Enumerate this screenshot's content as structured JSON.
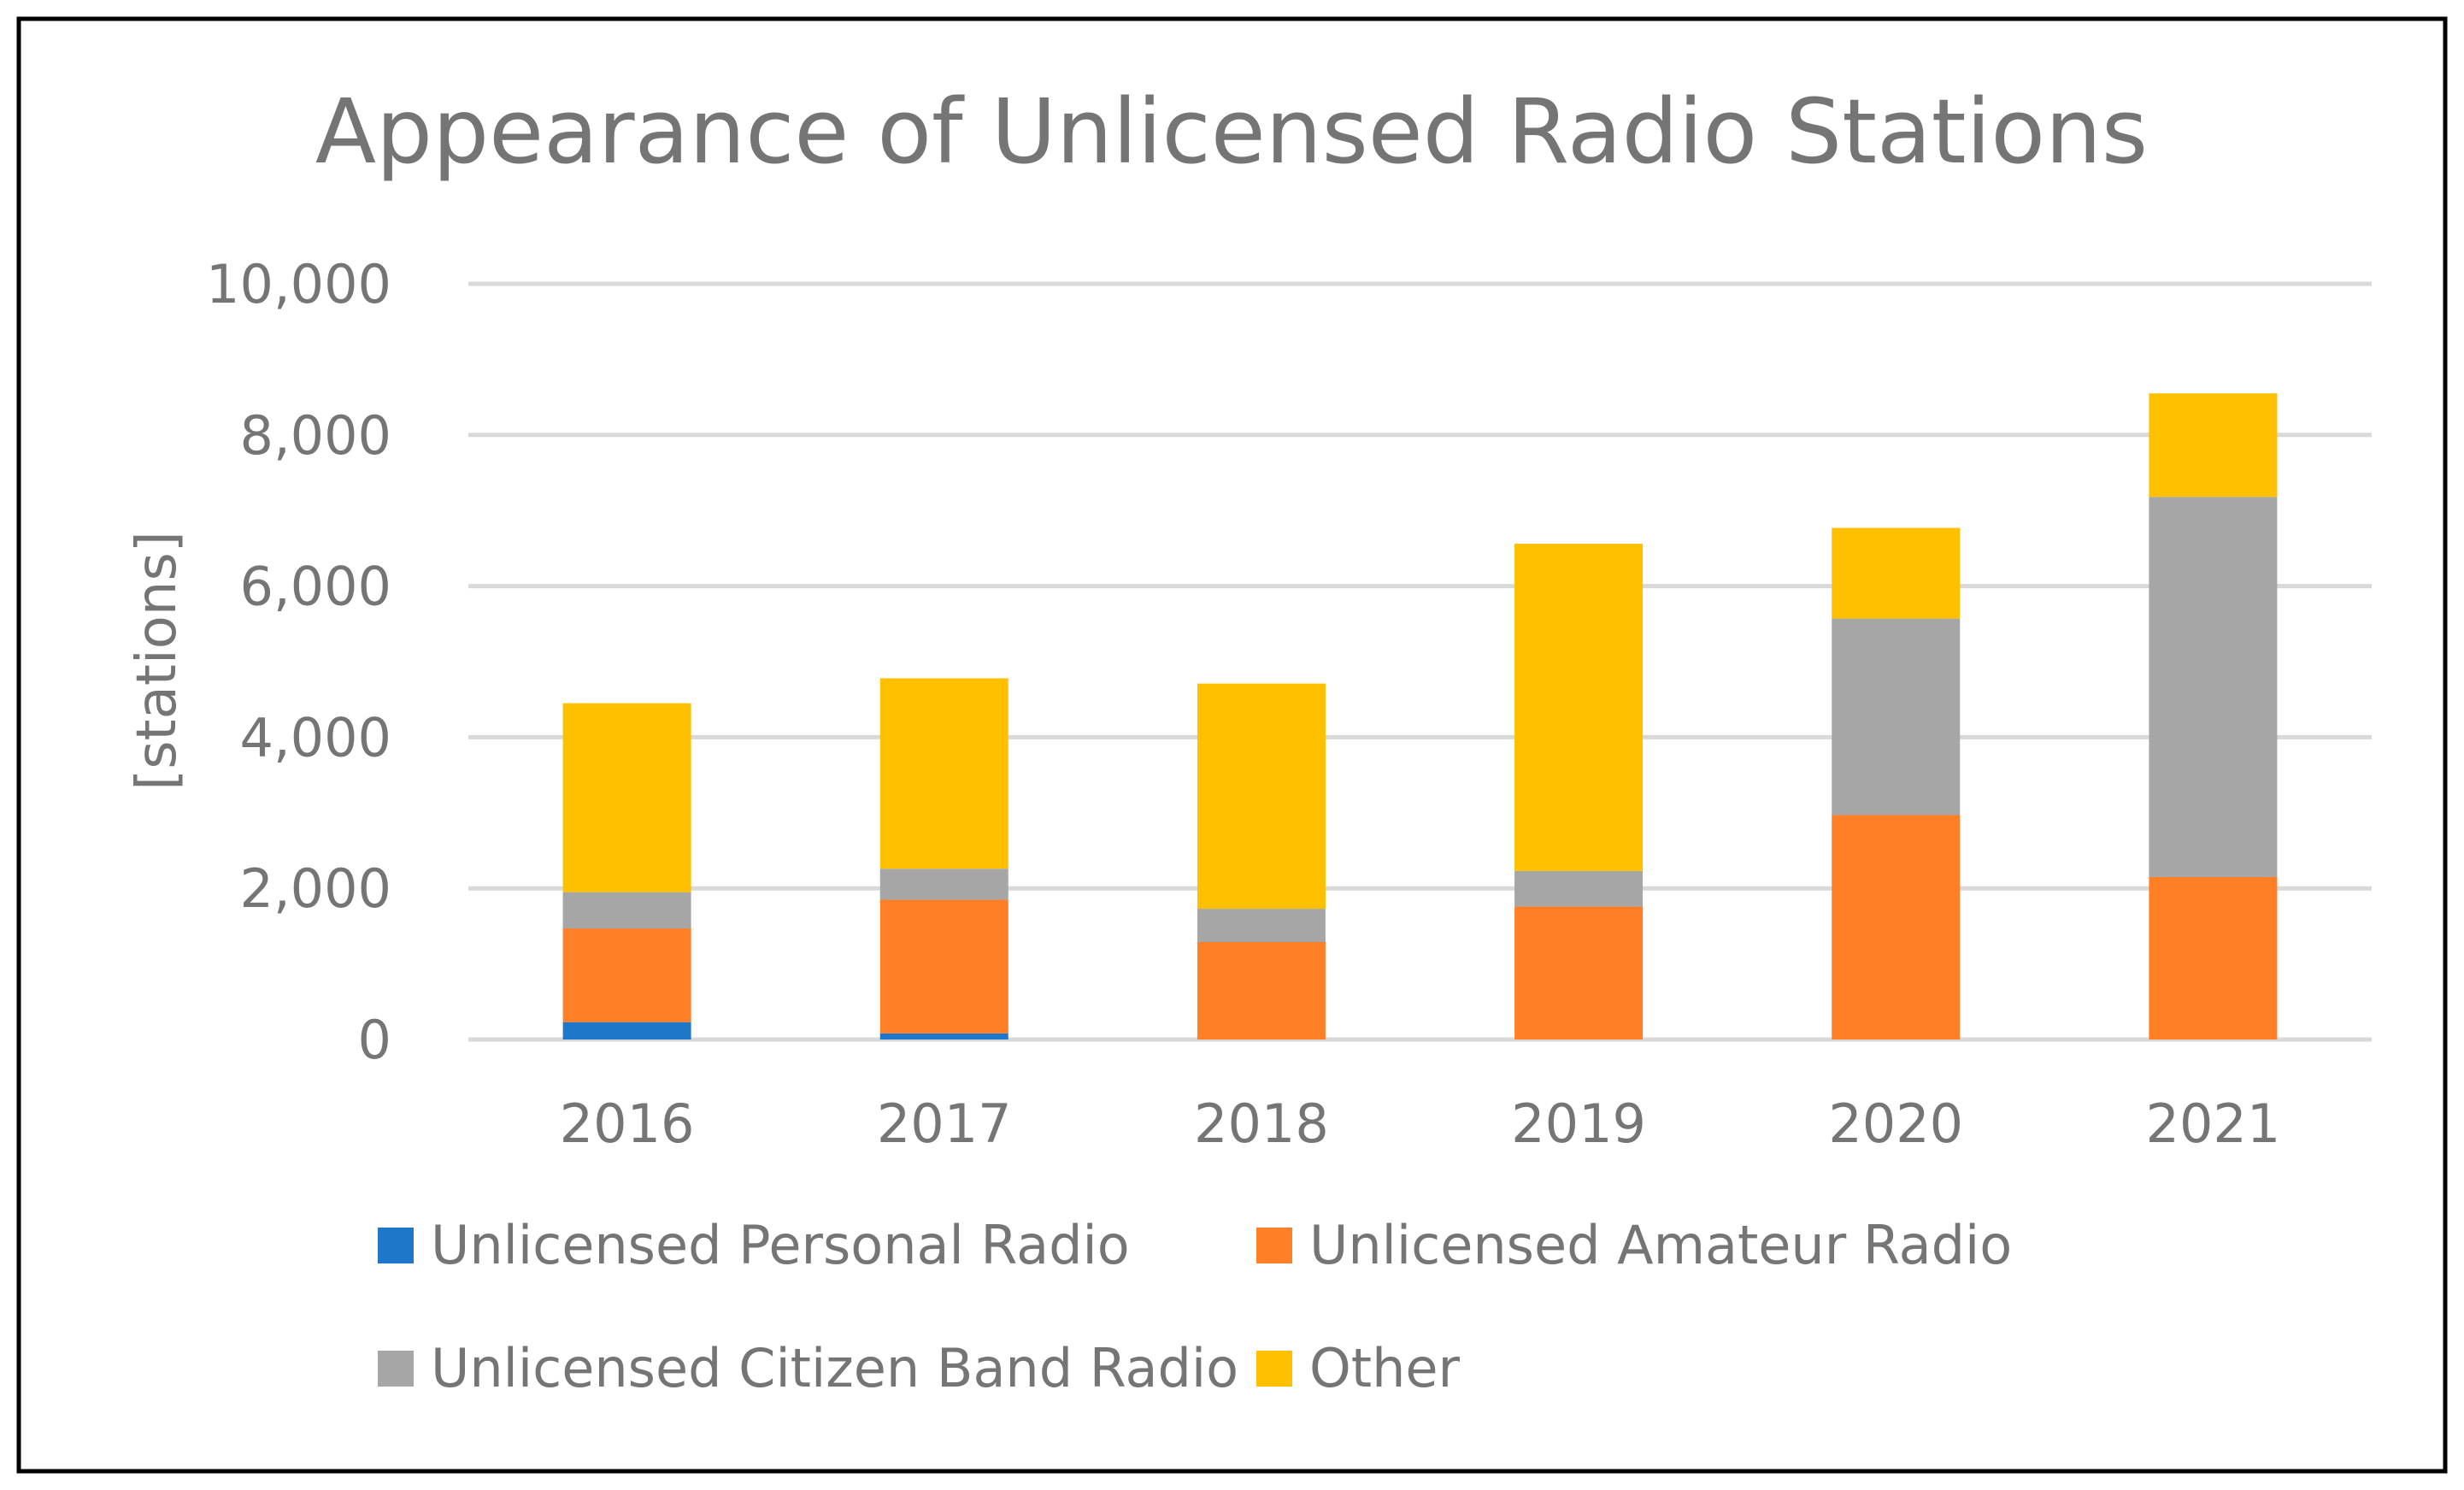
{
  "chart_data": {
    "type": "bar",
    "stacked": true,
    "title": "Appearance of Unlicensed Radio Stations",
    "xlabel": "",
    "ylabel": "[stations]",
    "ylim": [
      0,
      10000
    ],
    "yticks": [
      0,
      2000,
      4000,
      6000,
      8000,
      10000
    ],
    "ytick_labels": [
      "0",
      "2,000",
      "4,000",
      "6,000",
      "8,000",
      "10,000"
    ],
    "grid": true,
    "legend_position": "bottom",
    "categories": [
      "2016",
      "2017",
      "2018",
      "2019",
      "2020",
      "2021"
    ],
    "series": [
      {
        "name": "Unlicensed Personal Radio",
        "color": "#1f77c9",
        "values": [
          230,
          80,
          0,
          0,
          0,
          0
        ]
      },
      {
        "name": "Unlicensed Amateur Radio",
        "color": "#ff7f27",
        "values": [
          1240,
          1770,
          1290,
          1760,
          2970,
          2150
        ]
      },
      {
        "name": "Unlicensed Citizen Band Radio",
        "color": "#a6a6a6",
        "values": [
          480,
          410,
          440,
          470,
          2600,
          5030
        ]
      },
      {
        "name": "Other",
        "color": "#ffc000",
        "values": [
          2500,
          2520,
          2980,
          4330,
          1200,
          1370
        ]
      }
    ]
  }
}
